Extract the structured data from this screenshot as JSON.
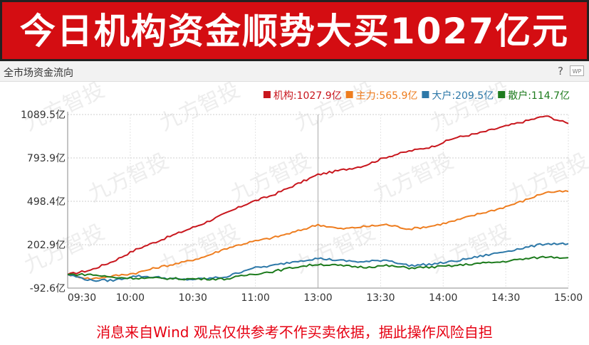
{
  "banner": {
    "title": "今日机构资金顺势大买1027亿元"
  },
  "panel": {
    "title": "全市场资金流向",
    "help": "?",
    "wp": "WP"
  },
  "watermark": "九方智投",
  "footer": {
    "disclaimer": "消息来自Wind 观点仅供参考不作买卖依据，据此操作风险自担"
  },
  "chart_data": {
    "type": "line",
    "title": "全市场资金流向",
    "xlabel": "",
    "ylabel": "",
    "x_ticks": [
      "09:30",
      "10:00",
      "10:30",
      "11:00",
      "13:00",
      "13:30",
      "14:00",
      "14:30",
      "15:00"
    ],
    "y_ticks": [
      1089.5,
      793.9,
      498.4,
      202.9,
      -92.6
    ],
    "y_tick_labels": [
      "1089.5亿",
      "793.9亿",
      "498.4亿",
      "202.9亿",
      "-92.6亿"
    ],
    "ylim": [
      -92.6,
      1089.5
    ],
    "unit": "亿",
    "grid": true,
    "legend_position": "top-right",
    "series": [
      {
        "name": "机构",
        "legend_label": "机构:1027.9亿",
        "color": "#c8161d",
        "values": [
          0,
          30,
          90,
          170,
          230,
          290,
          350,
          420,
          490,
          540,
          610,
          680,
          710,
          740,
          800,
          840,
          870,
          930,
          960,
          1000,
          1040,
          1080,
          1027.9
        ]
      },
      {
        "name": "主力",
        "legend_label": "主力:565.9亿",
        "color": "#ee7d1f",
        "values": [
          0,
          -30,
          -10,
          10,
          50,
          80,
          120,
          180,
          220,
          250,
          290,
          340,
          310,
          325,
          340,
          310,
          330,
          365,
          410,
          450,
          500,
          560,
          565.9
        ]
      },
      {
        "name": "大户",
        "legend_label": "大户:209.5亿",
        "color": "#2d78a8",
        "values": [
          0,
          -40,
          -40,
          -10,
          -20,
          -35,
          -30,
          -15,
          40,
          60,
          90,
          110,
          95,
          85,
          100,
          60,
          70,
          90,
          120,
          150,
          180,
          210,
          209.5
        ]
      },
      {
        "name": "散户",
        "legend_label": "散户:114.7亿",
        "color": "#1d7b1d",
        "values": [
          0,
          0,
          -20,
          -25,
          -25,
          -30,
          -30,
          -30,
          0,
          20,
          50,
          70,
          60,
          50,
          60,
          45,
          50,
          60,
          75,
          85,
          105,
          120,
          114.7
        ]
      }
    ]
  }
}
